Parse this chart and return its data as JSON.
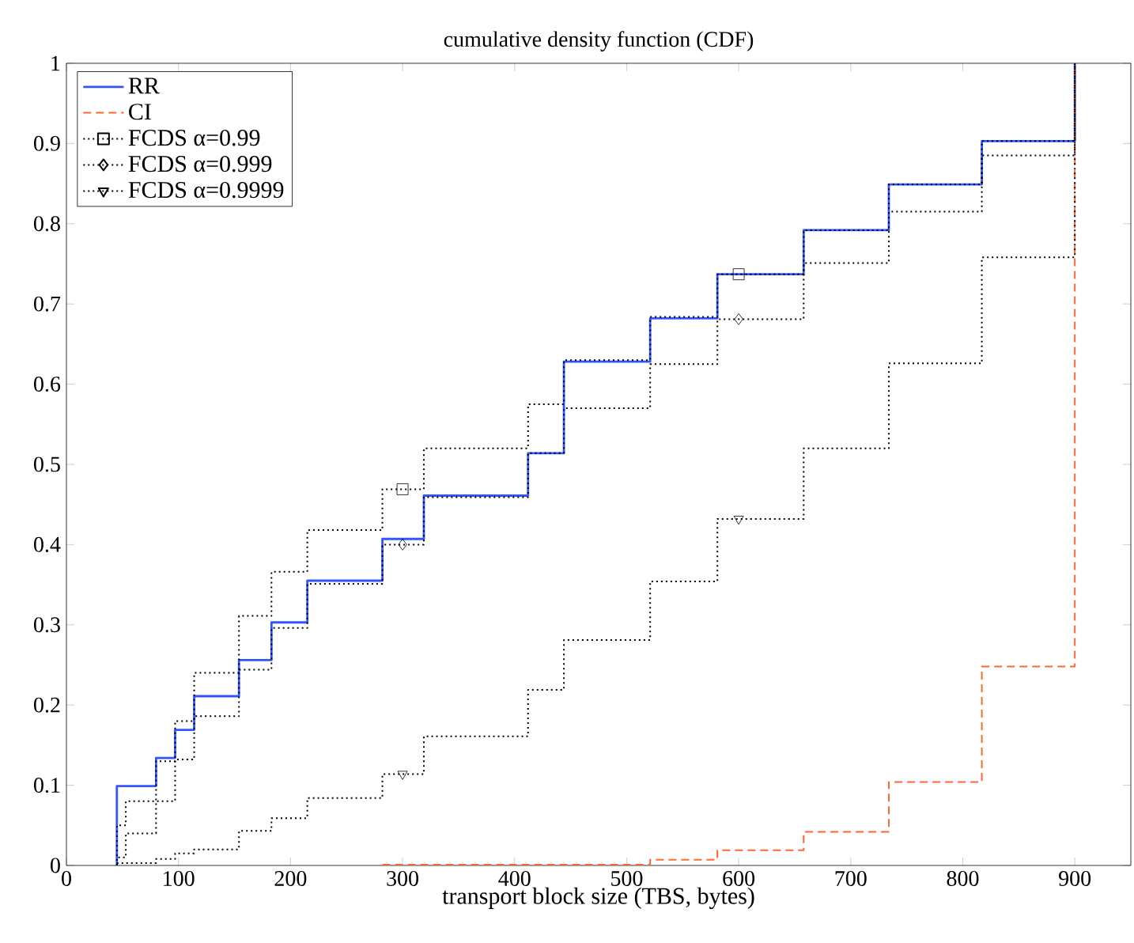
{
  "chart_data": {
    "type": "step",
    "title": "cumulative density function (CDF)",
    "xlabel": "transport block size (TBS, bytes)",
    "xlim": [
      0,
      950
    ],
    "ylim": [
      0,
      1
    ],
    "xticks": [
      0,
      100,
      200,
      300,
      400,
      500,
      600,
      700,
      800,
      900
    ],
    "yticks": [
      0,
      0.1,
      0.2,
      0.3,
      0.4,
      0.5,
      0.6,
      0.7,
      0.8,
      0.9,
      1
    ],
    "grid": false,
    "legend": "top left",
    "series": [
      {
        "name": "RR",
        "color": "#3355ff",
        "line_style": "solid",
        "x": [
          45,
          45,
          80,
          97,
          114,
          154,
          183,
          215,
          282,
          319,
          412,
          444,
          521,
          581,
          658,
          734,
          817,
          900
        ],
        "values": [
          0,
          0.099,
          0.134,
          0.169,
          0.211,
          0.256,
          0.303,
          0.355,
          0.407,
          0.461,
          0.514,
          0.628,
          0.682,
          0.737,
          0.792,
          0.849,
          0.903,
          1
        ]
      },
      {
        "name": "CI",
        "color": "#ff6633",
        "line_style": "dashed",
        "x": [
          282,
          521,
          581,
          658,
          734,
          817,
          900
        ],
        "values": [
          0.001,
          0.007,
          0.019,
          0.042,
          0.104,
          0.248,
          1
        ]
      },
      {
        "name": "FCDS α=0.99",
        "color": "#000000",
        "line_style": "dotted",
        "x": [
          45,
          45,
          53,
          80,
          97,
          114,
          154,
          183,
          215,
          282,
          319,
          412,
          444,
          521,
          581,
          658,
          734,
          817,
          900
        ],
        "values": [
          0,
          0.05,
          0.08,
          0.13,
          0.18,
          0.24,
          0.311,
          0.366,
          0.418,
          0.469,
          0.52,
          0.575,
          0.63,
          0.684,
          0.737,
          0.792,
          0.849,
          0.903,
          1
        ]
      },
      {
        "type": "scatter",
        "color": "#000000",
        "marker": "square",
        "x": [
          300,
          600
        ],
        "values": [
          0.469,
          0.737
        ]
      },
      {
        "name": "FCDS α=0.999",
        "color": "#000000",
        "line_style": "dotted",
        "x": [
          45,
          45,
          53,
          80,
          97,
          114,
          154,
          183,
          215,
          282,
          319,
          412,
          444,
          521,
          581,
          658,
          734,
          817,
          900
        ],
        "values": [
          0,
          0.01,
          0.04,
          0.08,
          0.132,
          0.186,
          0.244,
          0.296,
          0.351,
          0.4,
          0.459,
          0.514,
          0.57,
          0.625,
          0.681,
          0.751,
          0.815,
          0.885,
          1
        ]
      },
      {
        "type": "scatter",
        "color": "#000000",
        "marker": "diamond",
        "x": [
          300,
          600
        ],
        "values": [
          0.4,
          0.681
        ]
      },
      {
        "name": "FCDS α=0.9999",
        "color": "#000000",
        "line_style": "dotted",
        "x": [
          45,
          80,
          97,
          114,
          154,
          183,
          215,
          282,
          319,
          412,
          444,
          521,
          581,
          658,
          734,
          817,
          900
        ],
        "values": [
          0.003,
          0.008,
          0.015,
          0.02,
          0.043,
          0.059,
          0.084,
          0.114,
          0.161,
          0.219,
          0.281,
          0.354,
          0.432,
          0.52,
          0.626,
          0.758,
          1
        ]
      },
      {
        "type": "scatter",
        "color": "#000000",
        "marker": "triangle",
        "x": [
          300,
          600
        ],
        "values": [
          0.114,
          0.432
        ]
      }
    ]
  }
}
